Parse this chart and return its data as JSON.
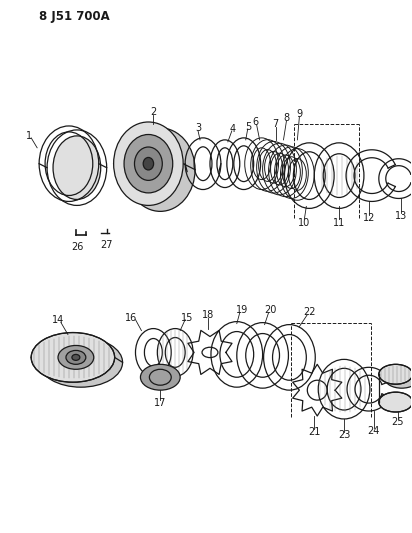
{
  "title": "8 J51 700A",
  "bg_color": "#ffffff",
  "line_color": "#1a1a1a",
  "fig_width": 4.12,
  "fig_height": 5.33,
  "dpi": 100,
  "gray1": "#c8c8c8",
  "gray2": "#a0a0a0",
  "gray3": "#888888",
  "gray_light": "#e0e0e0"
}
